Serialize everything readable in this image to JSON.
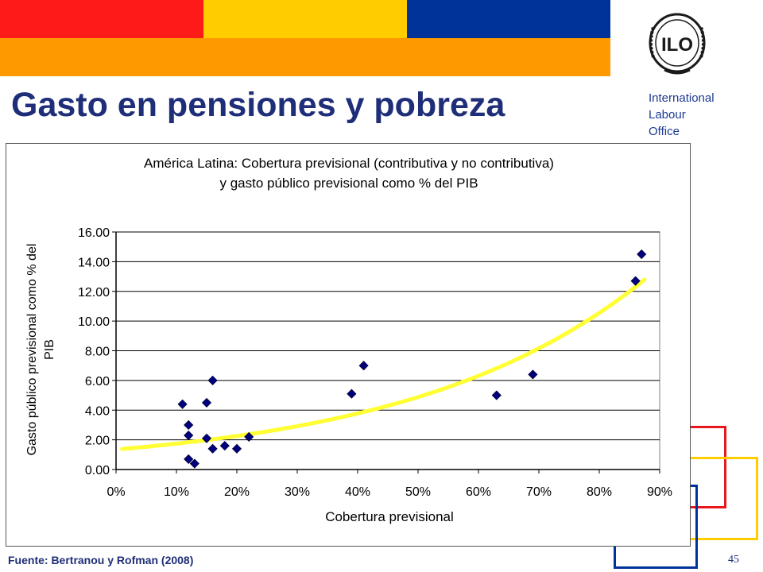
{
  "header": {
    "colors": {
      "red": "#ff1a1a",
      "yellow": "#ffcc00",
      "blue": "#003399",
      "orange": "#ff9900"
    }
  },
  "logo": {
    "icon": "ilo-emblem-icon",
    "text": "ILO"
  },
  "org": {
    "line1": "International",
    "line2": "Labour",
    "line3": "Office"
  },
  "slide": {
    "title": "Gasto en pensiones y pobreza"
  },
  "footer": {
    "source": "Fuente: Bertranou y Rofman (2008)",
    "page_number": "45"
  },
  "chart_data": {
    "type": "scatter",
    "title_line1": "América Latina: Cobertura previsional (contributiva y no contributiva)",
    "title_line2": "y gasto público previsional como % del PIB",
    "xlabel": "Cobertura previsional",
    "ylabel_line1": "Gasto público previsional como  % del",
    "ylabel_line2": "PIB",
    "xlim": [
      0,
      0.9
    ],
    "ylim": [
      0,
      16
    ],
    "x_ticks": [
      0,
      0.1,
      0.2,
      0.3,
      0.4,
      0.5,
      0.6,
      0.7,
      0.8,
      0.9
    ],
    "x_tick_labels": [
      "0%",
      "10%",
      "20%",
      "30%",
      "40%",
      "50%",
      "60%",
      "70%",
      "80%",
      "90%"
    ],
    "y_ticks": [
      0,
      2,
      4,
      6,
      8,
      10,
      12,
      14,
      16
    ],
    "y_tick_labels": [
      "0.00",
      "2.00",
      "4.00",
      "6.00",
      "8.00",
      "10.00",
      "12.00",
      "14.00",
      "16.00"
    ],
    "grid": "horizontal",
    "points": [
      {
        "x": 0.11,
        "y": 4.4
      },
      {
        "x": 0.12,
        "y": 3.0
      },
      {
        "x": 0.12,
        "y": 2.3
      },
      {
        "x": 0.12,
        "y": 0.7
      },
      {
        "x": 0.13,
        "y": 0.4
      },
      {
        "x": 0.15,
        "y": 4.5
      },
      {
        "x": 0.15,
        "y": 2.1
      },
      {
        "x": 0.16,
        "y": 6.0
      },
      {
        "x": 0.16,
        "y": 1.4
      },
      {
        "x": 0.18,
        "y": 1.6
      },
      {
        "x": 0.2,
        "y": 1.4
      },
      {
        "x": 0.22,
        "y": 2.2
      },
      {
        "x": 0.39,
        "y": 5.1
      },
      {
        "x": 0.41,
        "y": 7.0
      },
      {
        "x": 0.63,
        "y": 5.0
      },
      {
        "x": 0.69,
        "y": 6.4
      },
      {
        "x": 0.86,
        "y": 12.7
      },
      {
        "x": 0.87,
        "y": 14.5
      }
    ],
    "trendline": {
      "type": "exponential",
      "a": 1.35,
      "b": 2.57,
      "x_range": [
        0.01,
        0.875
      ]
    },
    "colors": {
      "marker": "#00007f",
      "trendline": "#ffff33"
    }
  }
}
